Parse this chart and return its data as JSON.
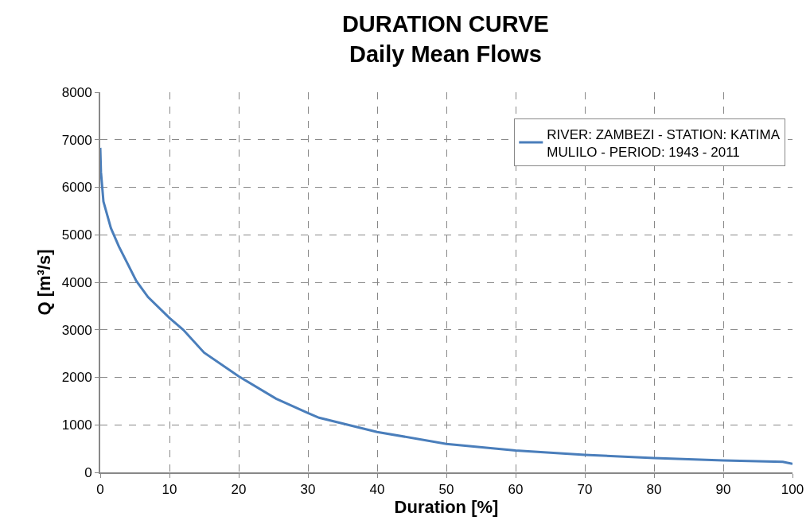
{
  "chart_data": {
    "type": "line",
    "title": "DURATION CURVE\nDaily Mean Flows",
    "xlabel": "Duration [%]",
    "ylabel": "Q [m³/s]",
    "series": [
      {
        "name": "RIVER: ZAMBEZI - STATION: KATIMA MULILO - PERIOD: 1943 - 2011",
        "color": "#4a7ebb",
        "x": [
          0,
          0.1,
          0.46,
          1.54,
          2.7,
          3.85,
          5.2,
          6.9,
          10,
          12,
          15,
          20,
          25.4,
          27.7,
          30,
          31.6,
          40,
          50,
          60,
          70,
          80,
          90,
          98.6,
          100
        ],
        "values": [
          6830,
          6320,
          5700,
          5140,
          4750,
          4420,
          4030,
          3690,
          3250,
          3000,
          2520,
          2020,
          1550,
          1400,
          1250,
          1150,
          850,
          600,
          460,
          370,
          300,
          250,
          220,
          180
        ]
      }
    ],
    "xlim": [
      0,
      100
    ],
    "xticks": [
      0,
      10,
      20,
      30,
      40,
      50,
      60,
      70,
      80,
      90,
      100
    ],
    "ylim": [
      0,
      8000
    ],
    "yticks": [
      0,
      1000,
      2000,
      3000,
      4000,
      5000,
      6000,
      7000,
      8000
    ],
    "grid": true,
    "legend": "top right",
    "marker": "none",
    "line_style": "solid"
  }
}
